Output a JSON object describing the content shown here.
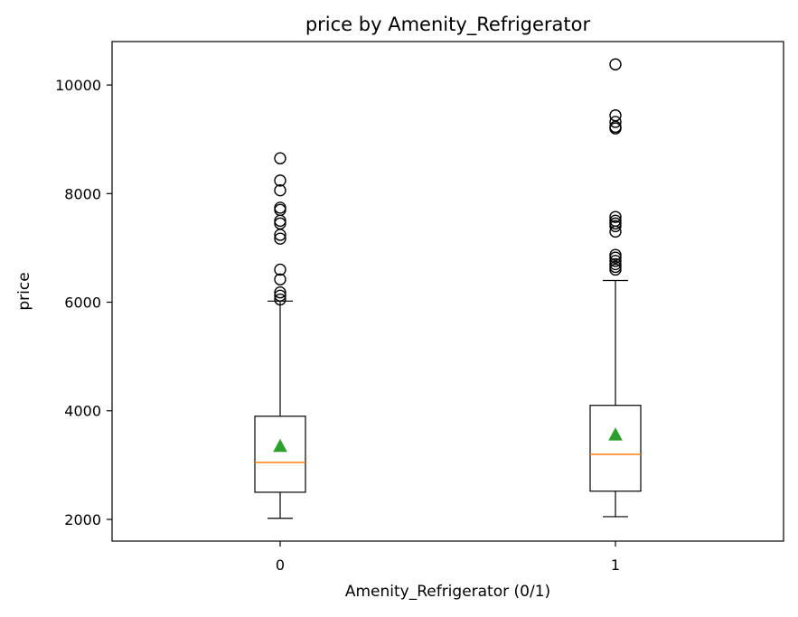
{
  "chart_data": {
    "type": "boxplot",
    "title": "price by Amenity_Refrigerator",
    "xlabel": "Amenity_Refrigerator (0/1)",
    "ylabel": "price",
    "categories": [
      "0",
      "1"
    ],
    "ylim": [
      1600,
      10800
    ],
    "yticks": [
      2000,
      4000,
      6000,
      8000,
      10000
    ],
    "grid": false,
    "colors": {
      "box": "#000000",
      "median": "#ff7f0e",
      "mean": "#2ca02c",
      "flier": "#000000"
    },
    "boxes": [
      {
        "category": "0",
        "whisker_low": 2020,
        "q1": 2500,
        "median": 3050,
        "mean": 3350,
        "q3": 3900,
        "whisker_high": 6020,
        "fliers": [
          6050,
          6120,
          6180,
          6420,
          6600,
          7170,
          7240,
          7450,
          7500,
          7700,
          7740,
          8060,
          8240,
          8650
        ]
      },
      {
        "category": "1",
        "whisker_low": 2050,
        "q1": 2520,
        "median": 3200,
        "mean": 3560,
        "q3": 4100,
        "whisker_high": 6400,
        "fliers": [
          6600,
          6650,
          6700,
          6760,
          6820,
          6870,
          7300,
          7400,
          7450,
          7500,
          7570,
          9200,
          9230,
          9320,
          9440,
          10380
        ]
      }
    ]
  }
}
